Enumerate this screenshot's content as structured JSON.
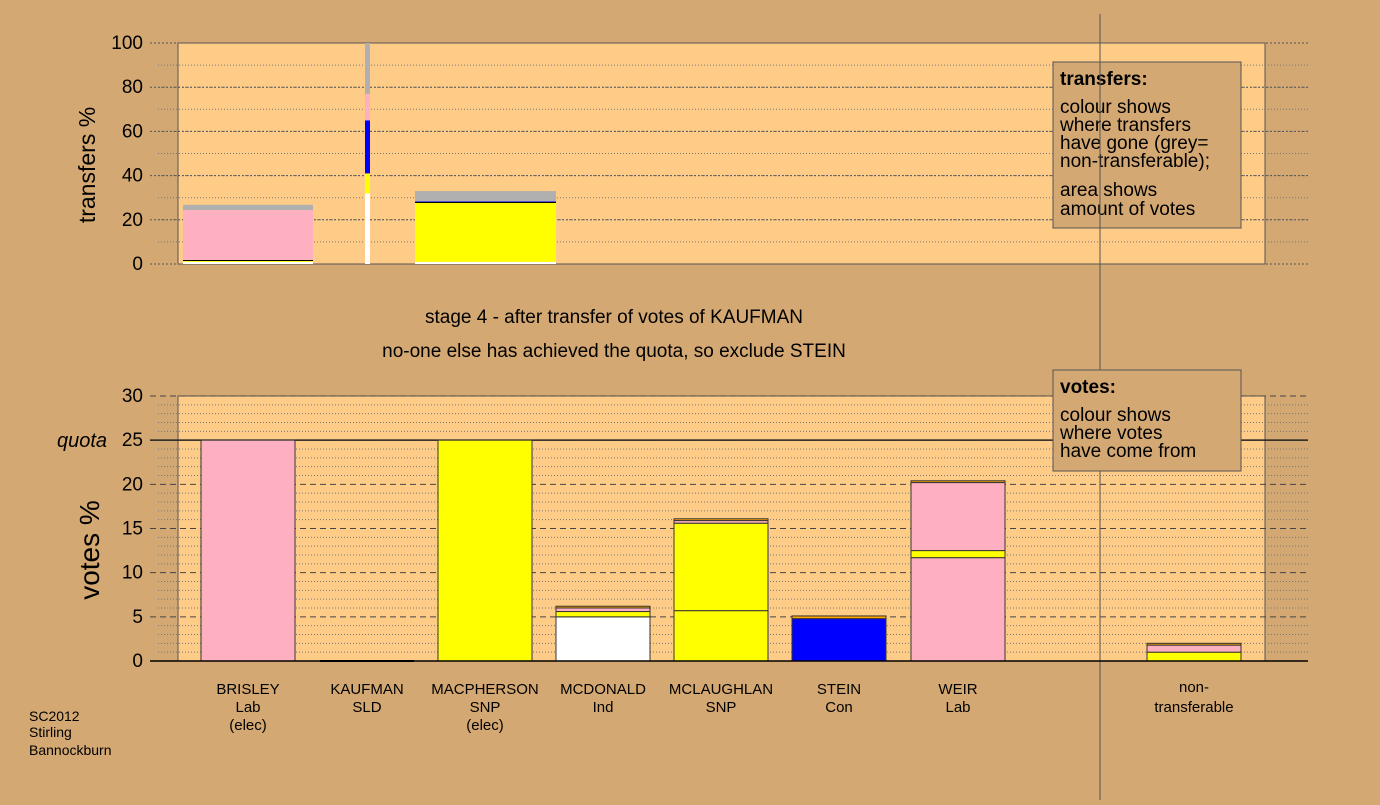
{
  "colors": {
    "background": "#d4a873",
    "plot_bg": "#ffcc88",
    "Lab": "#ffb0c0",
    "SNP": "#ffff00",
    "Con": "#0000ff",
    "Ind": "#ffffff",
    "SLD": "#ffa500",
    "nontransferable": "#b0b0b0"
  },
  "chart_data": [
    {
      "type": "bar",
      "id": "transfers",
      "ylabel": "transfers %",
      "ylim": [
        0,
        100
      ],
      "yticks": [
        "0",
        "20",
        "40",
        "60",
        "80",
        "100"
      ],
      "legend": {
        "heading": "transfers:",
        "lines1": [
          "colour shows",
          "where transfers",
          "have gone (grey=",
          "non-transferable);"
        ],
        "lines2": [
          "area shows",
          "amount of votes"
        ]
      },
      "bars": [
        {
          "name": "BRISLEY",
          "width_share": 25,
          "segments": [
            {
              "party": "Ind",
              "value": 1.0
            },
            {
              "party": "SNP",
              "value": 0.6
            },
            {
              "party": "Lab",
              "value": 22.8
            },
            {
              "party": "nontransferable",
              "value": 2.4
            }
          ]
        },
        {
          "name": "KAUFMAN",
          "width_share": 1,
          "segments": [
            {
              "party": "Ind",
              "value": 32
            },
            {
              "party": "SNP",
              "value": 9
            },
            {
              "party": "Con",
              "value": 24
            },
            {
              "party": "Lab",
              "value": 12
            },
            {
              "party": "nontransferable",
              "value": 23
            }
          ]
        },
        {
          "name": "MACPHERSON",
          "width_share": 26,
          "segments": [
            {
              "party": "Ind",
              "value": 1.0
            },
            {
              "party": "SNP",
              "value": 26.8
            },
            {
              "party": "Con",
              "value": 0.5
            },
            {
              "party": "nontransferable",
              "value": 4.7
            }
          ]
        }
      ]
    },
    {
      "type": "bar",
      "id": "votes",
      "ylabel": "votes %",
      "ylim": [
        0,
        30
      ],
      "yticks": [
        "0",
        "5",
        "10",
        "15",
        "20",
        "25",
        "30"
      ],
      "quota": 25,
      "quota_label": "quota",
      "legend": {
        "heading": "votes:",
        "lines1": [
          "colour shows",
          "where votes",
          "have come from"
        ]
      },
      "categories": [
        {
          "name": "BRISLEY",
          "party": "Lab",
          "note": "(elec)"
        },
        {
          "name": "KAUFMAN",
          "party": "SLD",
          "note": ""
        },
        {
          "name": "MACPHERSON",
          "party": "SNP",
          "note": "(elec)"
        },
        {
          "name": "MCDONALD",
          "party": "Ind",
          "note": ""
        },
        {
          "name": "MCLAUGHLAN",
          "party": "SNP",
          "note": ""
        },
        {
          "name": "STEIN",
          "party": "Con",
          "note": ""
        },
        {
          "name": "WEIR",
          "party": "Lab",
          "note": ""
        }
      ],
      "stacks": [
        [
          {
            "party": "Lab",
            "value": 25.0
          }
        ],
        [],
        [
          {
            "party": "SNP",
            "value": 25.0
          }
        ],
        [
          {
            "party": "Ind",
            "value": 5.0
          },
          {
            "party": "SNP",
            "value": 0.6
          },
          {
            "party": "Lab",
            "value": 0.4
          },
          {
            "party": "SLD",
            "value": 0.2
          }
        ],
        [
          {
            "party": "SNP",
            "value": 5.7
          },
          {
            "party": "SNP",
            "value": 9.9
          },
          {
            "party": "Lab",
            "value": 0.3
          },
          {
            "party": "SLD",
            "value": 0.2
          }
        ],
        [
          {
            "party": "Con",
            "value": 4.8
          },
          {
            "party": "SLD",
            "value": 0.3
          }
        ],
        [
          {
            "party": "Lab",
            "value": 11.7
          },
          {
            "party": "SNP",
            "value": 0.8
          },
          {
            "party": "Lab",
            "value": 7.7
          },
          {
            "party": "SLD",
            "value": 0.2
          }
        ]
      ],
      "nontransferable": {
        "label1": "non-",
        "label2": "transferable",
        "stack": [
          {
            "party": "SNP",
            "value": 1.0
          },
          {
            "party": "Lab",
            "value": 0.8
          },
          {
            "party": "SLD",
            "value": 0.2
          }
        ]
      }
    }
  ],
  "stage_text": "stage 4 - after transfer of votes of KAUFMAN",
  "action_text": "no-one else has achieved the quota, so exclude STEIN",
  "election": {
    "line1": "SC2012",
    "line2": "Stirling",
    "line3": "Bannockburn"
  }
}
